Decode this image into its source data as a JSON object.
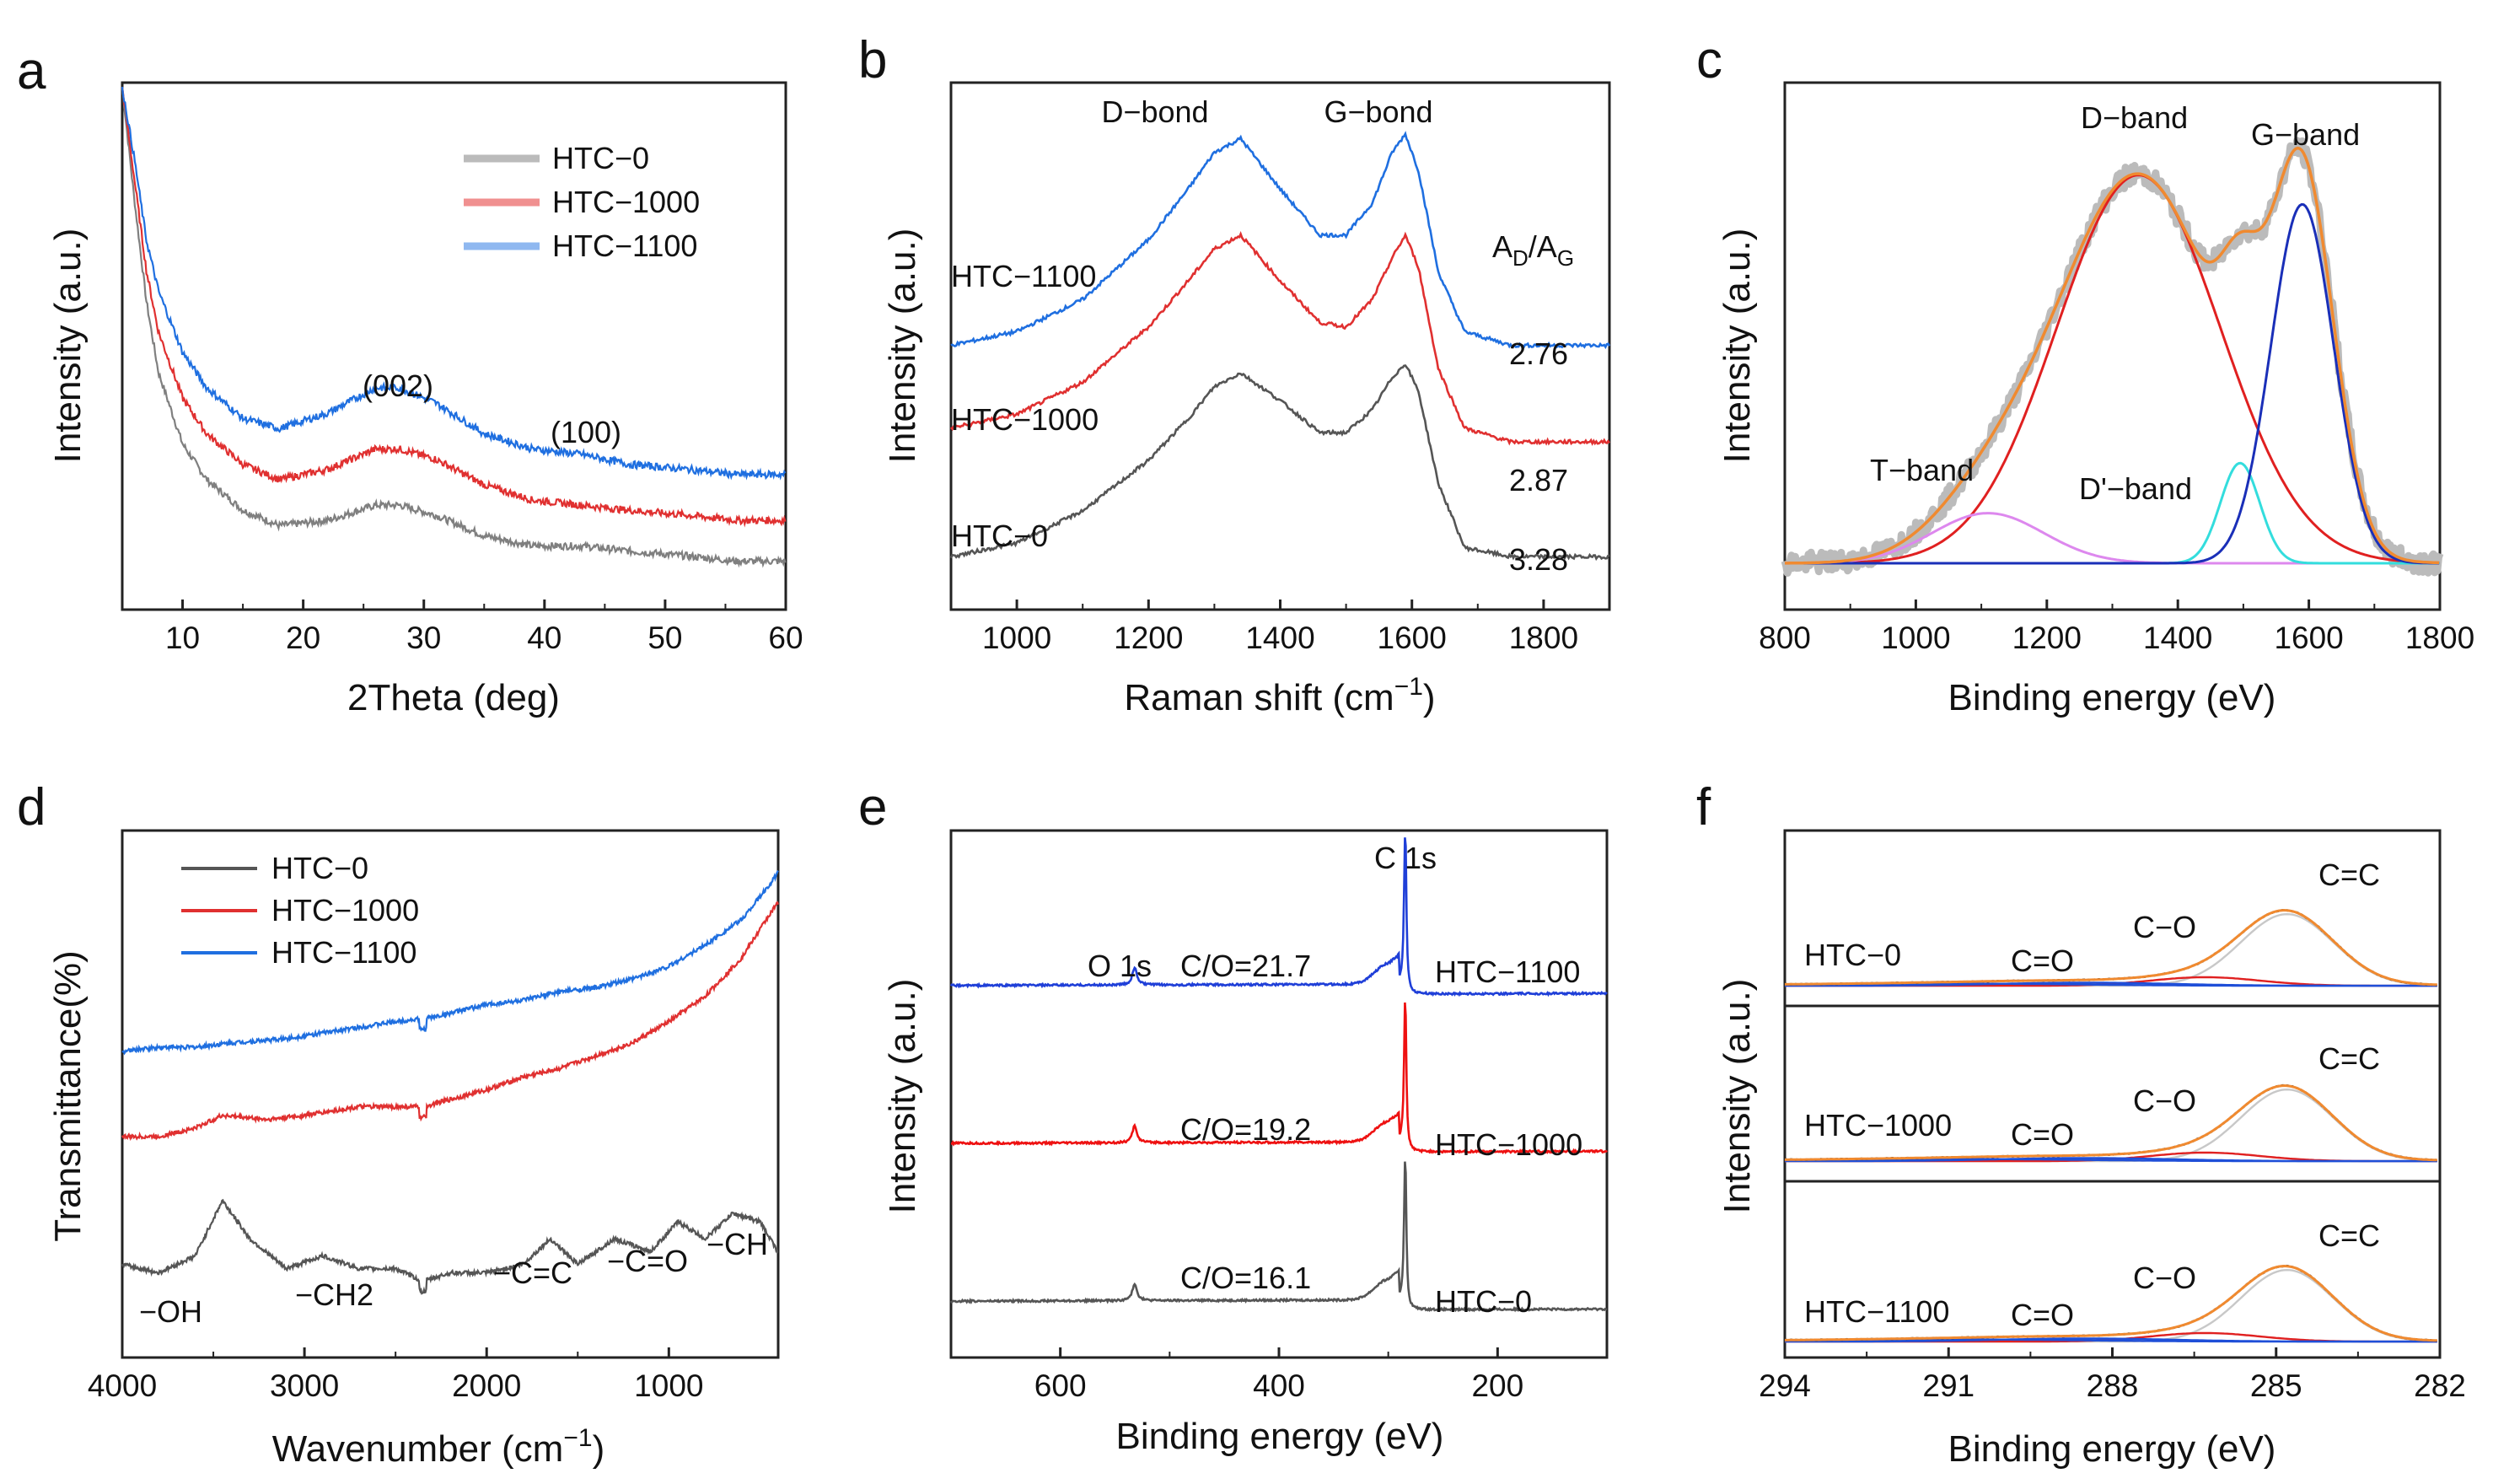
{
  "chart_data": [
    {
      "panel": "a",
      "type": "line",
      "xlabel": "2Theta (deg)",
      "ylabel": "Intensity (a.u.)",
      "xlim": [
        5,
        60
      ],
      "xticks": [
        10,
        20,
        30,
        40,
        50,
        60
      ],
      "legend": "top-right",
      "annotations": [
        "(002)",
        "(100)"
      ],
      "series": [
        {
          "name": "HTC−0",
          "color": "#7f7f7f",
          "x": [
            5,
            6,
            7,
            8,
            10,
            12,
            15,
            18,
            22,
            26,
            28,
            31,
            35,
            39,
            43,
            47,
            52,
            56,
            60
          ],
          "y": [
            1.0,
            0.78,
            0.58,
            0.44,
            0.3,
            0.23,
            0.17,
            0.14,
            0.15,
            0.18,
            0.18,
            0.16,
            0.12,
            0.1,
            0.1,
            0.09,
            0.08,
            0.07,
            0.07
          ]
        },
        {
          "name": "HTC−1000",
          "color": "#e03030",
          "x": [
            5,
            6,
            7,
            8,
            10,
            12,
            15,
            18,
            22,
            26,
            28,
            31,
            35,
            39,
            43,
            47,
            52,
            56,
            60
          ],
          "y": [
            1.0,
            0.82,
            0.64,
            0.52,
            0.39,
            0.32,
            0.26,
            0.23,
            0.25,
            0.29,
            0.29,
            0.27,
            0.22,
            0.19,
            0.18,
            0.17,
            0.16,
            0.15,
            0.15
          ]
        },
        {
          "name": "HTC−1100",
          "color": "#1f6fe0",
          "x": [
            5,
            6,
            7,
            8,
            10,
            12,
            15,
            18,
            22,
            26,
            28,
            31,
            35,
            39,
            43,
            47,
            52,
            56,
            60
          ],
          "y": [
            1.0,
            0.86,
            0.7,
            0.6,
            0.48,
            0.41,
            0.35,
            0.33,
            0.36,
            0.41,
            0.41,
            0.38,
            0.32,
            0.29,
            0.28,
            0.26,
            0.25,
            0.24,
            0.24
          ]
        }
      ]
    },
    {
      "panel": "b",
      "type": "line",
      "xlabel": "Raman shift (cm−1)",
      "xlabel_main": "Raman shift (cm",
      "xlabel_sup": "−1",
      "xlabel_end": ")",
      "ylabel": "Intensity (a.u.)",
      "xlim": [
        900,
        1900
      ],
      "xticks": [
        1000,
        1200,
        1400,
        1600,
        1800
      ],
      "peak_labels": [
        "D−bond",
        "G−bond"
      ],
      "ratio_label": "AD/AG",
      "ratio_label_main": "A",
      "ratio_label_sub1": "D",
      "ratio_label_mid": "/A",
      "ratio_label_sub2": "G",
      "series": [
        {
          "name": "HTC−1100",
          "color": "#1f6fe0",
          "ratio": "2.76",
          "x": [
            900,
            1000,
            1100,
            1200,
            1260,
            1300,
            1340,
            1400,
            1460,
            1500,
            1540,
            1570,
            1590,
            1610,
            1640,
            1680,
            1750,
            1900
          ],
          "y": [
            0.52,
            0.55,
            0.62,
            0.75,
            0.86,
            0.94,
            0.97,
            0.86,
            0.76,
            0.76,
            0.83,
            0.94,
            0.98,
            0.9,
            0.68,
            0.55,
            0.52,
            0.52
          ]
        },
        {
          "name": "HTC−1000",
          "color": "#e03030",
          "ratio": "2.87",
          "x": [
            900,
            1000,
            1100,
            1200,
            1260,
            1300,
            1340,
            1400,
            1460,
            1500,
            1540,
            1570,
            1590,
            1610,
            1640,
            1680,
            1750,
            1900
          ],
          "y": [
            0.34,
            0.37,
            0.44,
            0.56,
            0.66,
            0.73,
            0.76,
            0.66,
            0.57,
            0.56,
            0.62,
            0.71,
            0.76,
            0.69,
            0.47,
            0.34,
            0.31,
            0.31
          ]
        },
        {
          "name": "HTC−0",
          "color": "#555555",
          "ratio": "3.28",
          "x": [
            900,
            1000,
            1100,
            1200,
            1260,
            1300,
            1340,
            1400,
            1460,
            1500,
            1540,
            1570,
            1590,
            1610,
            1640,
            1680,
            1750,
            1900
          ],
          "y": [
            0.06,
            0.09,
            0.16,
            0.27,
            0.36,
            0.43,
            0.46,
            0.4,
            0.33,
            0.33,
            0.38,
            0.45,
            0.48,
            0.42,
            0.22,
            0.08,
            0.06,
            0.06
          ]
        }
      ]
    },
    {
      "panel": "c",
      "type": "line",
      "xlabel": "Binding energy (eV)",
      "ylabel": "Intensity (a.u.)",
      "xlim": [
        800,
        1800
      ],
      "xticks": [
        800,
        1000,
        1200,
        1400,
        1600,
        1800
      ],
      "band_labels": [
        "T−band",
        "D−band",
        "D'−band",
        "G−band"
      ],
      "components": [
        {
          "name": "D-band",
          "color": "#e02020",
          "center": 1340,
          "width": 125,
          "amp": 0.93
        },
        {
          "name": "T-band",
          "color": "#dd88ee",
          "center": 1110,
          "width": 85,
          "amp": 0.12
        },
        {
          "name": "D'-band",
          "color": "#33dddd",
          "center": 1495,
          "width": 30,
          "amp": 0.24
        },
        {
          "name": "G-band",
          "color": "#1a2fb8",
          "center": 1590,
          "width": 48,
          "amp": 0.86
        }
      ],
      "fit_color": "#f08a30",
      "data_color": "#bbbbbb"
    },
    {
      "panel": "d",
      "type": "line",
      "xlabel": "Wavenumber (cm−1)",
      "xlabel_main": "Wavenumber (cm",
      "xlabel_sup": "−1",
      "xlabel_end": ")",
      "ylabel": "Transmittance(%)",
      "xlim": [
        4000,
        400
      ],
      "xticks": [
        4000,
        3000,
        2000,
        1000
      ],
      "legend": "top-left",
      "group_labels": [
        "−OH",
        "−CH2",
        "−C=C",
        "−C=O",
        "−CH"
      ],
      "series": [
        {
          "name": "HTC−0",
          "color": "#555555",
          "x": [
            4000,
            3800,
            3600,
            3450,
            3300,
            3100,
            2900,
            2700,
            2500,
            2350,
            2200,
            2000,
            1800,
            1650,
            1500,
            1300,
            1100,
            950,
            800,
            650,
            500,
            400
          ],
          "y": [
            0.1,
            0.08,
            0.12,
            0.25,
            0.16,
            0.09,
            0.12,
            0.09,
            0.09,
            0.06,
            0.08,
            0.08,
            0.1,
            0.16,
            0.1,
            0.16,
            0.13,
            0.2,
            0.16,
            0.22,
            0.2,
            0.13
          ]
        },
        {
          "name": "HTC−1000",
          "color": "#e03030",
          "x": [
            4000,
            3800,
            3600,
            3450,
            3200,
            3000,
            2700,
            2350,
            2000,
            1800,
            1600,
            1400,
            1200,
            1000,
            800,
            600,
            450,
            400
          ],
          "y": [
            0.4,
            0.4,
            0.42,
            0.45,
            0.44,
            0.45,
            0.47,
            0.47,
            0.51,
            0.54,
            0.56,
            0.59,
            0.62,
            0.67,
            0.73,
            0.82,
            0.92,
            0.95
          ]
        },
        {
          "name": "HTC−1100",
          "color": "#1f6fe0",
          "x": [
            4000,
            3800,
            3600,
            3400,
            3100,
            2800,
            2500,
            2300,
            2000,
            1800,
            1600,
            1400,
            1200,
            1000,
            800,
            700,
            600,
            450,
            400
          ],
          "y": [
            0.6,
            0.61,
            0.61,
            0.62,
            0.63,
            0.65,
            0.67,
            0.68,
            0.71,
            0.72,
            0.74,
            0.75,
            0.77,
            0.8,
            0.85,
            0.88,
            0.91,
            0.99,
            1.02
          ]
        }
      ]
    },
    {
      "panel": "e",
      "type": "line",
      "xlabel": "Binding energy (eV)",
      "ylabel": "Intensity (a.u.)",
      "xlim": [
        700,
        100
      ],
      "xticks": [
        600,
        400,
        200
      ],
      "peak_labels": [
        "O 1s",
        "C 1s"
      ],
      "series": [
        {
          "name": "HTC−1100",
          "color": "#1f3fd8",
          "c_o_ratio": "C/O=21.7",
          "base": 0.72
        },
        {
          "name": "HTC−1000",
          "color": "#ee1111",
          "c_o_ratio": "C/O=19.2",
          "base": 0.4
        },
        {
          "name": "HTC−0",
          "color": "#555555",
          "c_o_ratio": "C/O=16.1",
          "base": 0.08
        }
      ]
    },
    {
      "panel": "f",
      "type": "line",
      "xlabel": "Binding energy (eV)",
      "ylabel": "Intensity (a.u.)",
      "xlim": [
        294,
        282
      ],
      "xticks": [
        294,
        291,
        288,
        285,
        282
      ],
      "subpanels": [
        {
          "name": "HTC−0",
          "labels": [
            "C=O",
            "C−O",
            "C=C"
          ]
        },
        {
          "name": "HTC−1000",
          "labels": [
            "C=O",
            "C−O",
            "C=C"
          ]
        },
        {
          "name": "HTC−1100",
          "labels": [
            "C=O",
            "C−O",
            "C=C"
          ]
        }
      ],
      "component_colors": {
        "c_c": "#c8c8c8",
        "c_o": "#e02020",
        "c_eq_o": "#1f4fd8",
        "fit": "#f08a30",
        "data": "#222222"
      }
    }
  ],
  "panel_letters": [
    "a",
    "b",
    "c",
    "d",
    "e",
    "f"
  ]
}
